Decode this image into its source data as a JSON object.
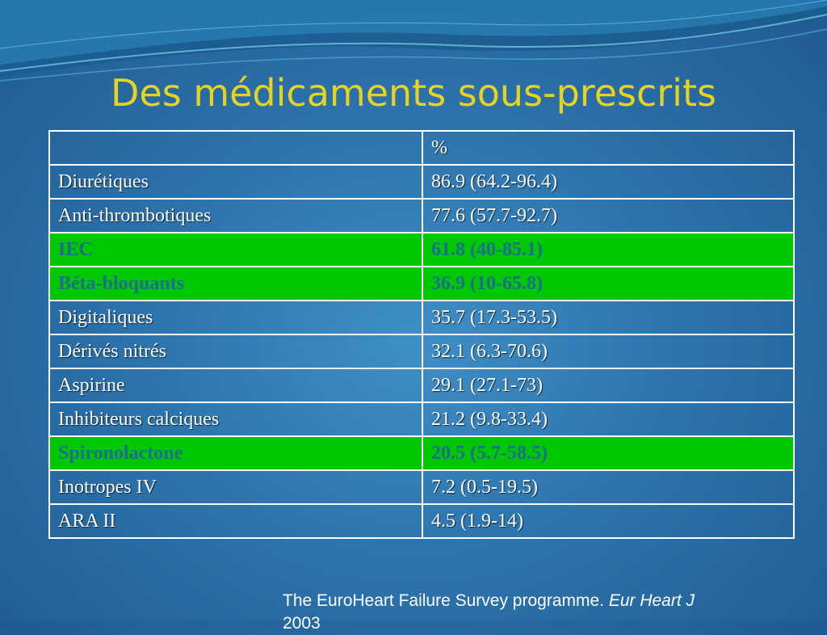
{
  "slide": {
    "title": "Des médicaments sous-prescrits"
  },
  "table": {
    "header": {
      "name": "",
      "value": "%"
    },
    "rows": [
      {
        "name": "Diurétiques",
        "value": "86.9 (64.2-96.4)",
        "highlight": false
      },
      {
        "name": "Anti-thrombotiques",
        "value": "77.6 (57.7-92.7)",
        "highlight": false
      },
      {
        "name": "IEC",
        "value": "61.8 (40-85.1)",
        "highlight": true
      },
      {
        "name": "Béta-bloquants",
        "value": "36.9 (10-65.8)",
        "highlight": true
      },
      {
        "name": "Digitaliques",
        "value": "35.7 (17.3-53.5)",
        "highlight": false
      },
      {
        "name": "Dérivés nitrés",
        "value": "32.1 (6.3-70.6)",
        "highlight": false
      },
      {
        "name": "Aspirine",
        "value": "29.1 (27.1-73)",
        "highlight": false
      },
      {
        "name": "Inhibiteurs calciques",
        "value": "21.2 (9.8-33.4)",
        "highlight": false
      },
      {
        "name": "Spironolactone",
        "value": "20.5 (5.7-58.5)",
        "highlight": true
      },
      {
        "name": "Inotropes IV",
        "value": "7.2 (0.5-19.5)",
        "highlight": false
      },
      {
        "name": "ARA II",
        "value": "4.5 (1.9-14)",
        "highlight": false
      }
    ],
    "highlight_color": "#00c800"
  },
  "citation": {
    "text": "The EuroHeart Failure Survey programme. ",
    "journal": "Eur Heart J",
    "year": "2003"
  }
}
